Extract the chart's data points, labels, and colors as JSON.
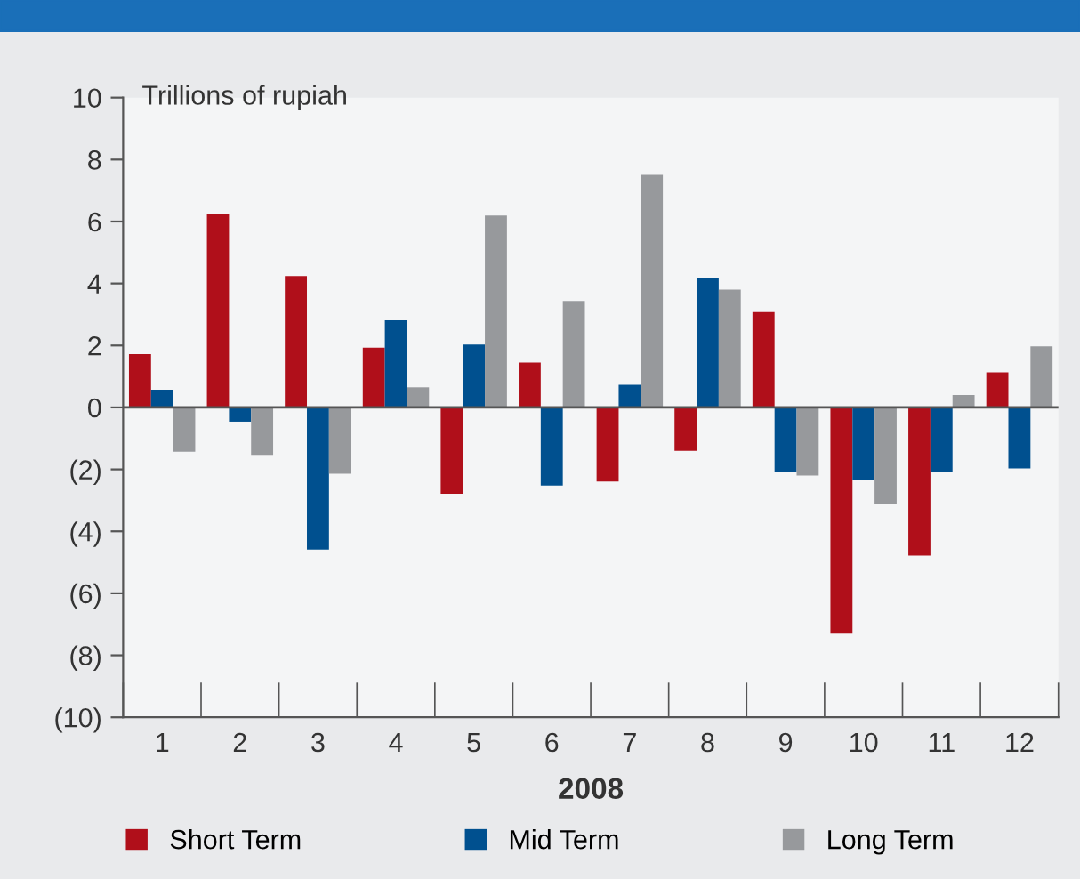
{
  "chart_data": {
    "type": "bar",
    "ylabel": "Trillions of rupiah",
    "xlabel": "2008",
    "categories": [
      "1",
      "2",
      "3",
      "4",
      "5",
      "6",
      "7",
      "8",
      "9",
      "10",
      "11",
      "12"
    ],
    "series": [
      {
        "name": "Short Term",
        "color": "#b00f1a",
        "values": [
          1.72,
          6.25,
          4.24,
          1.93,
          -2.79,
          1.45,
          -2.39,
          -1.4,
          3.08,
          -7.3,
          -4.78,
          1.13
        ]
      },
      {
        "name": "Mid Term",
        "color": "#00508f",
        "values": [
          0.57,
          -0.46,
          -4.59,
          2.81,
          2.03,
          -2.52,
          0.73,
          4.19,
          -2.1,
          -2.33,
          -2.08,
          -1.97
        ]
      },
      {
        "name": "Long Term",
        "color": "#97999c",
        "values": [
          -1.43,
          -1.53,
          -2.14,
          0.65,
          6.19,
          3.44,
          7.51,
          3.8,
          -2.2,
          -3.12,
          0.4,
          1.97
        ]
      }
    ],
    "ylim": [
      -10,
      10
    ],
    "yticks": [
      {
        "value": -10,
        "label": "(10)"
      },
      {
        "value": -8,
        "label": "(8)"
      },
      {
        "value": -6,
        "label": "(6)"
      },
      {
        "value": -4,
        "label": "(4)"
      },
      {
        "value": -2,
        "label": "(2)"
      },
      0,
      2,
      4,
      6,
      8,
      10
    ],
    "ref_lines": [
      {
        "axis": "y",
        "value": 0,
        "color": "#555555"
      }
    ],
    "grid": false,
    "legend": "bottom"
  }
}
